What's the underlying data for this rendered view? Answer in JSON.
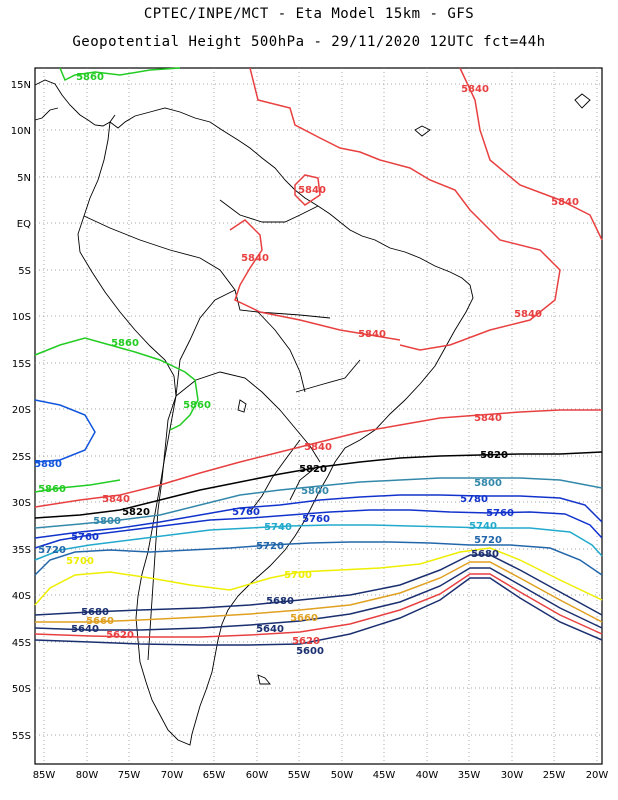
{
  "title_line1": "CPTEC/INPE/MCT  -   Eta Model 15km  -  GFS",
  "title_line2": "Geopotential Height 500hPa  - 29/11/2020 12UTC fct=44h",
  "y_tick_labels": [
    "15N",
    "10N",
    "5N",
    "EQ",
    "5S",
    "10S",
    "15S",
    "20S",
    "25S",
    "30S",
    "35S",
    "40S",
    "45S",
    "50S",
    "55S"
  ],
  "x_tick_labels": [
    "85W",
    "80W",
    "75W",
    "70W",
    "65W",
    "60W",
    "55W",
    "50W",
    "45W",
    "40W",
    "35W",
    "30W",
    "25W",
    "20W"
  ],
  "contour_colors": {
    "5860": "#22cc22",
    "5840": "#e84040",
    "5820": "#000000",
    "5800": "#3388aa",
    "5780": "#1133cc",
    "5760": "#1133cc",
    "5740": "#22aacc",
    "5720": "#2266aa",
    "5700": "#eeee00",
    "5680": "#1a2f6f",
    "5660": "#e0a020",
    "5640": "#1a2f6f",
    "5620": "#e84040",
    "5600": "#1a2f6f",
    "5880": "#1155dd"
  },
  "contour_labels": [
    {
      "text": "5860",
      "level": "5860"
    },
    {
      "text": "5840",
      "level": "5840"
    },
    {
      "text": "5840",
      "level": "5840"
    },
    {
      "text": "5840",
      "level": "5840"
    },
    {
      "text": "5840",
      "level": "5840"
    },
    {
      "text": "5840",
      "level": "5840"
    },
    {
      "text": "5840",
      "level": "5840"
    },
    {
      "text": "5860",
      "level": "5860"
    },
    {
      "text": "5860",
      "level": "5860"
    },
    {
      "text": "5840",
      "level": "5840"
    },
    {
      "text": "5840",
      "level": "5840"
    },
    {
      "text": "5880",
      "level": "5880"
    },
    {
      "text": "5820",
      "level": "5820"
    },
    {
      "text": "5820",
      "level": "5820"
    },
    {
      "text": "5860",
      "level": "5860"
    },
    {
      "text": "5840",
      "level": "5840"
    },
    {
      "text": "5800",
      "level": "5800"
    },
    {
      "text": "5800",
      "level": "5800"
    },
    {
      "text": "5780",
      "level": "5780"
    },
    {
      "text": "5820",
      "level": "5820"
    },
    {
      "text": "5760",
      "level": "5760"
    },
    {
      "text": "5760",
      "level": "5760"
    },
    {
      "text": "5760",
      "level": "5760"
    },
    {
      "text": "5800",
      "level": "5800"
    },
    {
      "text": "5740",
      "level": "5740"
    },
    {
      "text": "5740",
      "level": "5740"
    },
    {
      "text": "5720",
      "level": "5720"
    },
    {
      "text": "5720",
      "level": "5720"
    },
    {
      "text": "5760",
      "level": "5760"
    },
    {
      "text": "5720",
      "level": "5720"
    },
    {
      "text": "5700",
      "level": "5700"
    },
    {
      "text": "5700",
      "level": "5700"
    },
    {
      "text": "5680",
      "level": "5680"
    },
    {
      "text": "5680",
      "level": "5680"
    },
    {
      "text": "5680",
      "level": "5680"
    },
    {
      "text": "5660",
      "level": "5660"
    },
    {
      "text": "5660",
      "level": "5660"
    },
    {
      "text": "5640",
      "level": "5640"
    },
    {
      "text": "5640",
      "level": "5640"
    },
    {
      "text": "5620",
      "level": "5620"
    },
    {
      "text": "5620",
      "level": "5620"
    },
    {
      "text": "5600",
      "level": "5600"
    }
  ]
}
